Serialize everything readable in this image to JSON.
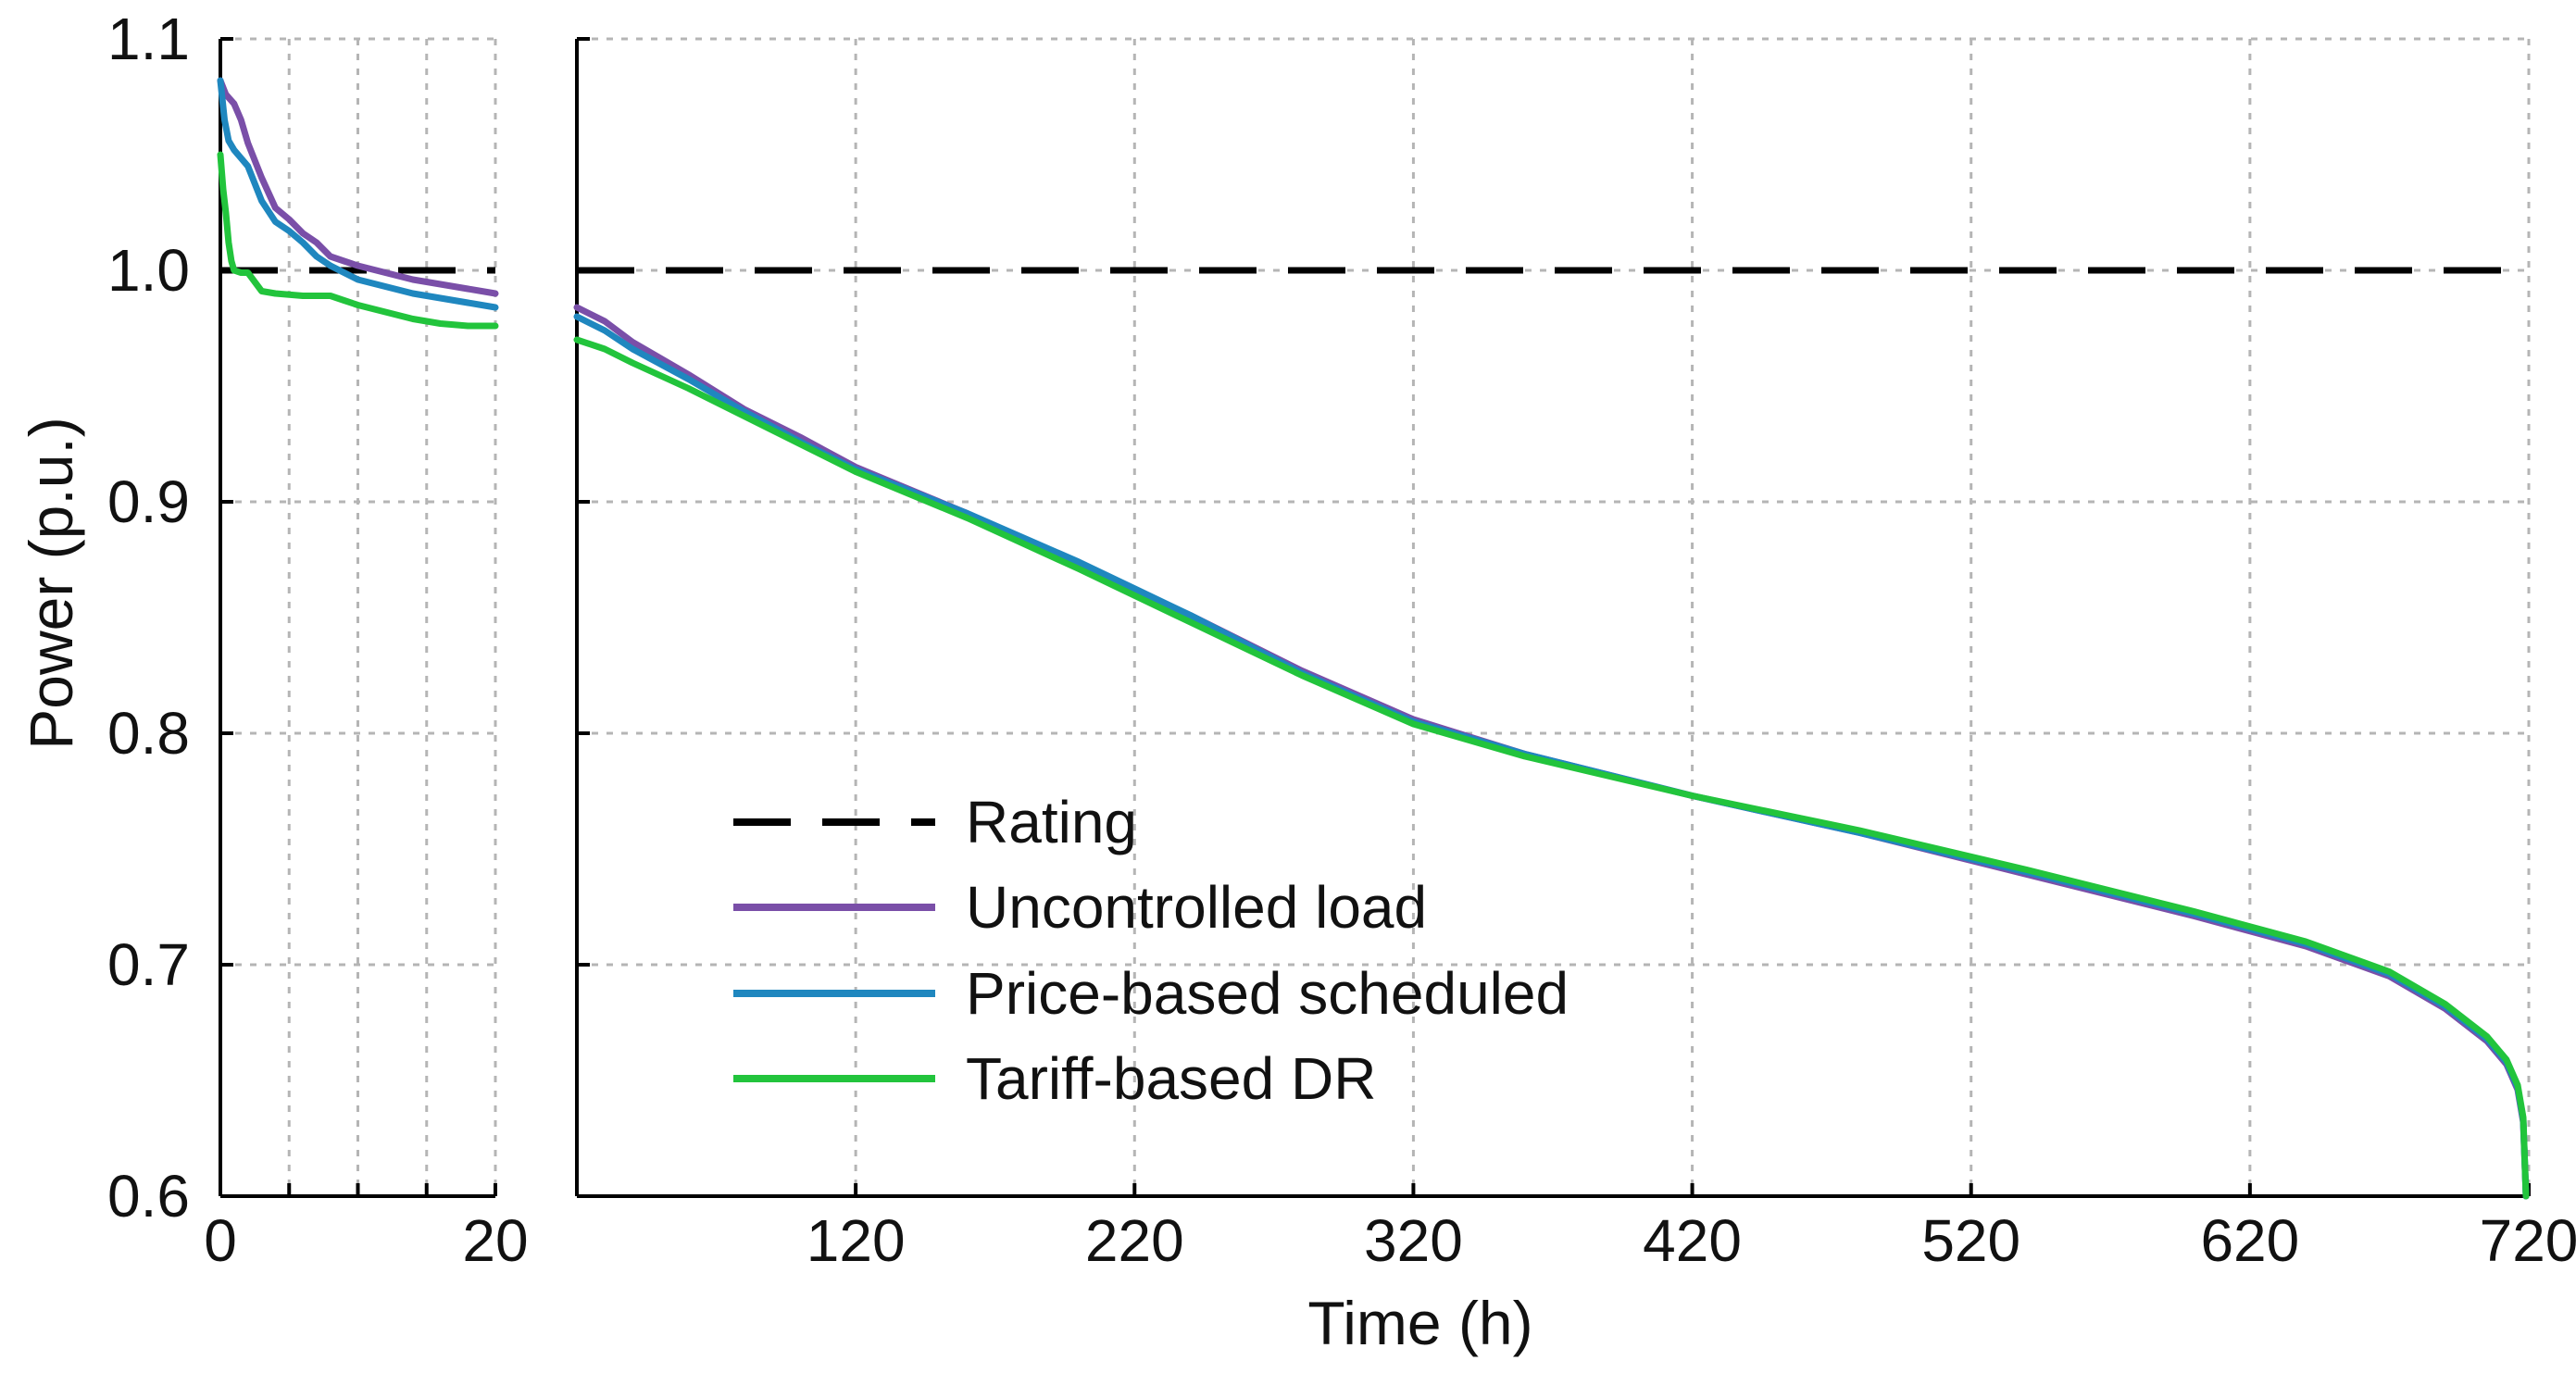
{
  "chart_data": {
    "type": "line",
    "title": "",
    "ylabel": "Power (p.u.)",
    "xlabel": "Time (h)",
    "ylim": [
      0.6,
      1.1
    ],
    "yticks": [
      "0.6",
      "0.7",
      "0.8",
      "0.9",
      "1.0",
      "1.1"
    ],
    "grid": true,
    "legend_position": "bottom-left of right panel",
    "legend": [
      "Rating",
      "Uncontrolled load",
      "Price-based scheduled",
      "Tariff-based DR"
    ],
    "colors": {
      "rating": "#000000",
      "uncontrolled": "#7a4fa8",
      "price": "#1f87bf",
      "tariff": "#22c43c"
    },
    "rating_value": 1.0,
    "panels": [
      {
        "name": "zoom",
        "xlim": [
          0,
          20
        ],
        "xticks": [
          "0",
          "20"
        ],
        "series": [
          {
            "name": "Uncontrolled load",
            "x": [
              0,
              0.4,
              1,
              1.5,
              2,
              3,
              4,
              5,
              6,
              7,
              8,
              9,
              10,
              12,
              14,
              16,
              18,
              20
            ],
            "y": [
              1.082,
              1.076,
              1.072,
              1.065,
              1.055,
              1.04,
              1.027,
              1.022,
              1.016,
              1.012,
              1.006,
              1.004,
              1.002,
              0.999,
              0.996,
              0.994,
              0.992,
              0.99
            ]
          },
          {
            "name": "Price-based scheduled",
            "x": [
              0,
              0.3,
              0.6,
              1,
              2,
              3,
              4,
              5,
              6,
              7,
              8,
              9,
              10,
              12,
              14,
              16,
              18,
              20
            ],
            "y": [
              1.082,
              1.065,
              1.056,
              1.052,
              1.045,
              1.03,
              1.021,
              1.017,
              1.012,
              1.006,
              1.002,
              0.999,
              0.996,
              0.993,
              0.99,
              0.988,
              0.986,
              0.984
            ]
          },
          {
            "name": "Tariff-based DR",
            "x": [
              0,
              0.2,
              0.4,
              0.6,
              0.8,
              1,
              1.5,
              2,
              3,
              4,
              6,
              8,
              9,
              10,
              12,
              14,
              16,
              18,
              20
            ],
            "y": [
              1.05,
              1.035,
              1.025,
              1.012,
              1.004,
              1.0,
              0.999,
              0.999,
              0.991,
              0.99,
              0.989,
              0.989,
              0.987,
              0.985,
              0.982,
              0.979,
              0.977,
              0.976,
              0.976
            ]
          }
        ]
      },
      {
        "name": "main",
        "xlim": [
          20,
          720
        ],
        "xticks": [
          "120",
          "220",
          "320",
          "420",
          "520",
          "620",
          "720"
        ],
        "series": [
          {
            "name": "Uncontrolled load",
            "x": [
              20,
              30,
              40,
              60,
              80,
              100,
              120,
              160,
              200,
              240,
              280,
              320,
              360,
              420,
              480,
              540,
              600,
              640,
              670,
              690,
              705,
              712,
              716,
              718,
              719
            ],
            "y": [
              0.984,
              0.978,
              0.969,
              0.955,
              0.94,
              0.928,
              0.915,
              0.895,
              0.873,
              0.851,
              0.827,
              0.806,
              0.791,
              0.773,
              0.757,
              0.739,
              0.721,
              0.708,
              0.695,
              0.681,
              0.667,
              0.657,
              0.646,
              0.632,
              0.6
            ]
          },
          {
            "name": "Price-based scheduled",
            "x": [
              20,
              30,
              40,
              60,
              80,
              100,
              120,
              160,
              200,
              240,
              280,
              320,
              360,
              420,
              480,
              540,
              600,
              640,
              670,
              690,
              705,
              712,
              716,
              718,
              719
            ],
            "y": [
              0.98,
              0.974,
              0.966,
              0.953,
              0.939,
              0.926,
              0.914,
              0.895,
              0.874,
              0.851,
              0.826,
              0.805,
              0.791,
              0.773,
              0.757,
              0.74,
              0.722,
              0.709,
              0.696,
              0.682,
              0.668,
              0.658,
              0.647,
              0.633,
              0.6
            ]
          },
          {
            "name": "Tariff-based DR",
            "x": [
              20,
              30,
              40,
              60,
              80,
              100,
              120,
              160,
              200,
              240,
              280,
              320,
              360,
              420,
              480,
              540,
              600,
              640,
              670,
              690,
              705,
              712,
              716,
              718,
              719
            ],
            "y": [
              0.97,
              0.966,
              0.96,
              0.949,
              0.937,
              0.925,
              0.913,
              0.893,
              0.871,
              0.848,
              0.825,
              0.804,
              0.79,
              0.773,
              0.758,
              0.741,
              0.723,
              0.71,
              0.697,
              0.683,
              0.669,
              0.659,
              0.648,
              0.634,
              0.6
            ]
          }
        ]
      }
    ]
  }
}
